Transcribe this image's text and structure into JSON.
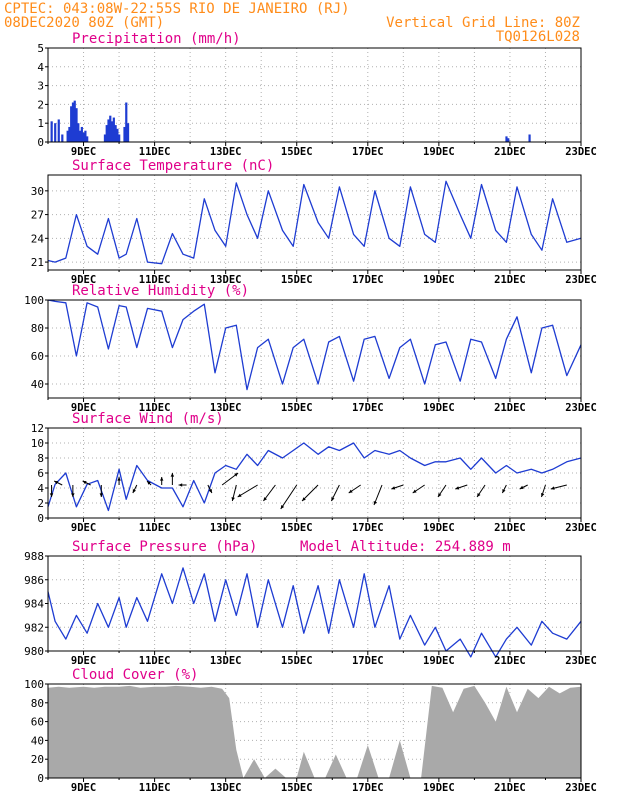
{
  "header": {
    "line1": "CPTEC:  043:08W-22:55S  RIO DE JANEIRO (RJ)",
    "line2": "08DEC2020 80Z (GMT)",
    "grid_label": "Vertical Grid Line: 80Z",
    "code": "TQ0126L028",
    "color": "#ff8c1a"
  },
  "colors": {
    "title": "#e0008a",
    "line": "#1e3cd2",
    "bar": "#1e3cd2",
    "cloud": "#a9a9a9",
    "grid": "#b0b0b0"
  },
  "x_axis": {
    "tick_labels": [
      "9DEC",
      "11DEC",
      "13DEC",
      "15DEC",
      "17DEC",
      "19DEC",
      "21DEC",
      "23DEC"
    ]
  },
  "chart_data": [
    {
      "id": "precip",
      "type": "bar",
      "title": "Precipitation (mm/h)",
      "ylim": [
        0,
        5
      ],
      "yticks": [
        0,
        1,
        2,
        3,
        4,
        5
      ],
      "x": [
        8.1,
        8.2,
        8.3,
        8.4,
        8.55,
        8.6,
        8.65,
        8.7,
        8.75,
        8.8,
        8.85,
        8.9,
        8.95,
        9.0,
        9.05,
        9.1,
        9.6,
        9.65,
        9.7,
        9.75,
        9.8,
        9.85,
        9.9,
        9.95,
        10.0,
        10.15,
        10.2,
        10.25,
        20.9,
        20.95,
        21.55
      ],
      "values": [
        1.1,
        1.0,
        1.2,
        0.4,
        0.6,
        0.8,
        1.9,
        2.1,
        2.2,
        1.8,
        1.0,
        0.6,
        0.8,
        0.5,
        0.6,
        0.3,
        0.4,
        0.9,
        1.2,
        1.4,
        1.1,
        1.3,
        0.9,
        0.7,
        0.4,
        0.8,
        2.1,
        1.0,
        0.3,
        0.2,
        0.4
      ]
    },
    {
      "id": "temp",
      "type": "line",
      "title": "Surface Temperature (nC)",
      "ylim": [
        20,
        32
      ],
      "yticks": [
        21,
        24,
        27,
        30
      ],
      "x": [
        8.0,
        8.2,
        8.5,
        8.8,
        9.1,
        9.4,
        9.7,
        10.0,
        10.2,
        10.5,
        10.8,
        11.2,
        11.5,
        11.8,
        12.1,
        12.4,
        12.7,
        13.0,
        13.3,
        13.6,
        13.9,
        14.2,
        14.6,
        14.9,
        15.2,
        15.6,
        15.9,
        16.2,
        16.6,
        16.9,
        17.2,
        17.6,
        17.9,
        18.2,
        18.6,
        18.9,
        19.2,
        19.6,
        19.9,
        20.2,
        20.6,
        20.9,
        21.2,
        21.6,
        21.9,
        22.2,
        22.6,
        23.0
      ],
      "values": [
        21.2,
        21.0,
        21.5,
        27.0,
        23.0,
        22.0,
        26.5,
        21.5,
        22.0,
        26.5,
        21.0,
        20.8,
        24.6,
        22.0,
        21.5,
        29.0,
        25.0,
        23.0,
        31.0,
        27.0,
        24.0,
        30.0,
        25.0,
        23.0,
        30.8,
        26.0,
        24.0,
        30.5,
        24.5,
        23.0,
        30.0,
        24.0,
        23.0,
        30.5,
        24.5,
        23.5,
        31.2,
        27.0,
        24.0,
        30.8,
        25.0,
        23.5,
        30.5,
        24.5,
        22.5,
        29.0,
        23.5,
        24.0
      ]
    },
    {
      "id": "rh",
      "type": "line",
      "title": "Relative Humidity (%)",
      "ylim": [
        30,
        100
      ],
      "yticks": [
        40,
        60,
        80,
        100
      ],
      "x": [
        8.0,
        8.2,
        8.5,
        8.8,
        9.1,
        9.4,
        9.7,
        10.0,
        10.2,
        10.5,
        10.8,
        11.2,
        11.5,
        11.8,
        12.1,
        12.4,
        12.7,
        13.0,
        13.3,
        13.6,
        13.9,
        14.2,
        14.6,
        14.9,
        15.2,
        15.6,
        15.9,
        16.2,
        16.6,
        16.9,
        17.2,
        17.6,
        17.9,
        18.2,
        18.6,
        18.9,
        19.2,
        19.6,
        19.9,
        20.2,
        20.6,
        20.9,
        21.2,
        21.6,
        21.9,
        22.2,
        22.6,
        23.0
      ],
      "values": [
        100,
        99,
        98,
        60,
        98,
        95,
        65,
        96,
        95,
        66,
        94,
        92,
        66,
        86,
        92,
        97,
        48,
        80,
        82,
        36,
        66,
        72,
        40,
        66,
        72,
        40,
        70,
        74,
        42,
        72,
        74,
        44,
        66,
        72,
        40,
        68,
        70,
        42,
        72,
        70,
        44,
        72,
        88,
        48,
        80,
        82,
        46,
        68
      ]
    },
    {
      "id": "wind",
      "type": "line",
      "title": "Surface Wind (m/s)",
      "ylim": [
        0,
        12
      ],
      "yticks": [
        0,
        2,
        4,
        6,
        8,
        10,
        12
      ],
      "x": [
        8.0,
        8.2,
        8.5,
        8.8,
        9.1,
        9.4,
        9.7,
        10.0,
        10.2,
        10.5,
        10.8,
        11.2,
        11.5,
        11.8,
        12.1,
        12.4,
        12.7,
        13.0,
        13.3,
        13.6,
        13.9,
        14.2,
        14.6,
        14.9,
        15.2,
        15.6,
        15.9,
        16.2,
        16.6,
        16.9,
        17.2,
        17.6,
        17.9,
        18.2,
        18.6,
        18.9,
        19.2,
        19.6,
        19.9,
        20.2,
        20.6,
        20.9,
        21.2,
        21.6,
        21.9,
        22.2,
        22.6,
        23.0
      ],
      "values": [
        1.5,
        4.5,
        6.0,
        1.5,
        4.5,
        5.0,
        1.0,
        6.5,
        2.5,
        7.0,
        5.0,
        4.0,
        4.0,
        1.5,
        5.0,
        2.0,
        6.0,
        7.0,
        6.5,
        8.5,
        7.0,
        9.0,
        8.0,
        9.0,
        10.0,
        8.5,
        9.5,
        9.0,
        10.0,
        8.0,
        9.0,
        8.5,
        9.0,
        8.0,
        7.0,
        7.5,
        7.5,
        8.0,
        6.5,
        8.0,
        6.0,
        7.0,
        6.0,
        6.5,
        6.0,
        6.5,
        7.5,
        8.0
      ],
      "vectors": [
        {
          "x": 8.1,
          "u": 0,
          "v": -3
        },
        {
          "x": 8.4,
          "u": -2,
          "v": 1
        },
        {
          "x": 8.7,
          "u": 0,
          "v": -3
        },
        {
          "x": 9.2,
          "u": -2,
          "v": 1
        },
        {
          "x": 9.5,
          "u": 0,
          "v": -3
        },
        {
          "x": 10.0,
          "u": 0,
          "v": 2
        },
        {
          "x": 10.5,
          "u": -1,
          "v": -2
        },
        {
          "x": 10.9,
          "u": -1,
          "v": 1
        },
        {
          "x": 11.2,
          "u": 0,
          "v": 2
        },
        {
          "x": 11.5,
          "u": 0,
          "v": 3
        },
        {
          "x": 11.9,
          "u": -2,
          "v": 0
        },
        {
          "x": 12.5,
          "u": 1,
          "v": -2
        },
        {
          "x": 12.9,
          "u": 4,
          "v": 3
        },
        {
          "x": 13.3,
          "u": -1,
          "v": -4
        },
        {
          "x": 13.9,
          "u": -5,
          "v": -3
        },
        {
          "x": 14.4,
          "u": -3,
          "v": -4
        },
        {
          "x": 15.0,
          "u": -4,
          "v": -6
        },
        {
          "x": 15.6,
          "u": -4,
          "v": -4
        },
        {
          "x": 16.2,
          "u": -2,
          "v": -4
        },
        {
          "x": 16.8,
          "u": -3,
          "v": -2
        },
        {
          "x": 17.4,
          "u": -2,
          "v": -5
        },
        {
          "x": 18.0,
          "u": -3,
          "v": -1
        },
        {
          "x": 18.6,
          "u": -3,
          "v": -2
        },
        {
          "x": 19.2,
          "u": -2,
          "v": -3
        },
        {
          "x": 19.8,
          "u": -3,
          "v": -1
        },
        {
          "x": 20.3,
          "u": -2,
          "v": -3
        },
        {
          "x": 20.9,
          "u": -1,
          "v": -2
        },
        {
          "x": 21.5,
          "u": -2,
          "v": -1
        },
        {
          "x": 22.0,
          "u": -1,
          "v": -3
        },
        {
          "x": 22.6,
          "u": -4,
          "v": -1
        }
      ]
    },
    {
      "id": "pres",
      "type": "line",
      "title": "Surface Pressure (hPa)",
      "annotation": "Model Altitude: 254.889 m",
      "ylim": [
        980,
        988
      ],
      "yticks": [
        980,
        982,
        984,
        986,
        988
      ],
      "x": [
        8.0,
        8.2,
        8.5,
        8.8,
        9.1,
        9.4,
        9.7,
        10.0,
        10.2,
        10.5,
        10.8,
        11.2,
        11.5,
        11.8,
        12.1,
        12.4,
        12.7,
        13.0,
        13.3,
        13.6,
        13.9,
        14.2,
        14.6,
        14.9,
        15.2,
        15.6,
        15.9,
        16.2,
        16.6,
        16.9,
        17.2,
        17.6,
        17.9,
        18.2,
        18.6,
        18.9,
        19.2,
        19.6,
        19.9,
        20.2,
        20.6,
        20.9,
        21.2,
        21.6,
        21.9,
        22.2,
        22.6,
        23.0
      ],
      "values": [
        985.0,
        982.5,
        981.0,
        983.0,
        981.5,
        984.0,
        982.0,
        984.5,
        982.0,
        984.5,
        982.5,
        986.5,
        984.0,
        987.0,
        984.0,
        986.5,
        982.5,
        986.0,
        983.0,
        986.5,
        982.0,
        986.0,
        982.0,
        985.5,
        981.5,
        985.5,
        981.5,
        986.0,
        982.0,
        986.5,
        982.0,
        985.5,
        981.0,
        983.0,
        980.5,
        982.0,
        980.0,
        981.0,
        979.5,
        981.5,
        979.5,
        981.0,
        982.0,
        980.5,
        982.5,
        981.5,
        981.0,
        982.5
      ]
    },
    {
      "id": "cloud",
      "type": "area",
      "title": "Cloud Cover (%)",
      "ylim": [
        0,
        100
      ],
      "yticks": [
        0,
        20,
        40,
        60,
        80,
        100
      ],
      "x": [
        8.0,
        8.3,
        8.6,
        9.0,
        9.3,
        9.6,
        10.0,
        10.3,
        10.6,
        11.0,
        11.3,
        11.6,
        12.0,
        12.3,
        12.6,
        12.9,
        13.1,
        13.3,
        13.5,
        13.8,
        14.1,
        14.4,
        14.7,
        15.0,
        15.2,
        15.5,
        15.8,
        16.1,
        16.4,
        16.7,
        17.0,
        17.3,
        17.6,
        17.9,
        18.2,
        18.5,
        18.8,
        19.1,
        19.4,
        19.7,
        20.0,
        20.3,
        20.6,
        20.9,
        21.2,
        21.5,
        21.8,
        22.1,
        22.4,
        22.7,
        23.0
      ],
      "values": [
        96,
        97,
        96,
        97,
        96,
        97,
        97,
        98,
        96,
        97,
        97,
        98,
        97,
        96,
        97,
        95,
        85,
        30,
        0,
        20,
        0,
        10,
        0,
        0,
        28,
        0,
        0,
        25,
        0,
        0,
        35,
        0,
        0,
        40,
        0,
        0,
        98,
        96,
        70,
        95,
        98,
        80,
        60,
        97,
        70,
        95,
        85,
        97,
        90,
        96,
        97
      ]
    }
  ]
}
